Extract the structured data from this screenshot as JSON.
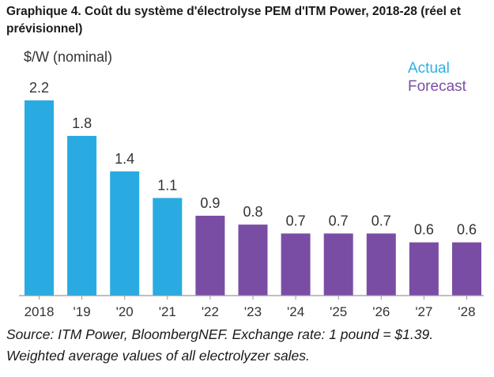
{
  "title": "Graphique 4. Coût du système d'électrolyse PEM d'ITM Power, 2018-28 (réel et prévisionnel)",
  "source_note": "Source: ITM Power, BloombergNEF. Exchange rate: 1 pound = $1.39. Weighted average values of all electrolyzer sales.",
  "colors": {
    "actual": "#29abe2",
    "forecast": "#7a4da5",
    "axis": "#999999"
  },
  "chart_data": {
    "type": "bar",
    "ylabel": "$/W (nominal)",
    "categories": [
      "2018",
      "'19",
      "'20",
      "'21",
      "'22",
      "'23",
      "'24",
      "'25",
      "'26",
      "'27",
      "'28"
    ],
    "values": [
      2.2,
      1.8,
      1.4,
      1.1,
      0.9,
      0.8,
      0.7,
      0.7,
      0.7,
      0.6,
      0.6
    ],
    "series_type": [
      "actual",
      "actual",
      "actual",
      "actual",
      "forecast",
      "forecast",
      "forecast",
      "forecast",
      "forecast",
      "forecast",
      "forecast"
    ],
    "legend": [
      {
        "name": "Actual",
        "key": "actual"
      },
      {
        "name": "Forecast",
        "key": "forecast"
      }
    ],
    "legend_position": "top-right",
    "ylim": [
      0,
      2.2
    ],
    "grid": false
  }
}
